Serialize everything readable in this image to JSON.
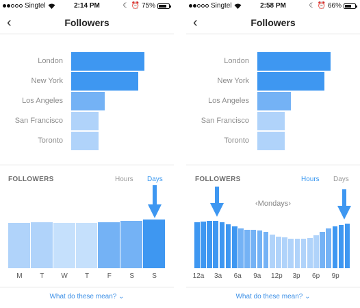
{
  "colors": {
    "accent": "#3897f0",
    "bar_dark": "#3e97f1",
    "bar_mid": "#74b2f5",
    "bar_light": "#b0d3fa",
    "bar_lighter": "#c5e0fc",
    "text_gray": "#999999"
  },
  "screens": [
    {
      "status": {
        "carrier": "Singtel",
        "time": "2:14 PM",
        "battery": "75%",
        "battery_level": 0.75
      },
      "nav": {
        "title": "Followers",
        "back_icon": "chevron-left-icon"
      },
      "top_locations": [
        {
          "name": "London",
          "value": 100
        },
        {
          "name": "New York",
          "value": 92
        },
        {
          "name": "Los Angeles",
          "value": 46
        },
        {
          "name": "San Francisco",
          "value": 37
        },
        {
          "name": "Toronto",
          "value": 37
        }
      ],
      "followers_section": {
        "heading": "FOLLOWERS",
        "tab_hours": "Hours",
        "tab_days": "Days",
        "active_tab": "Days",
        "chart_data": {
          "type": "bar",
          "categories": [
            "M",
            "T",
            "W",
            "T",
            "F",
            "S",
            "S"
          ],
          "values": [
            93,
            95,
            93,
            93,
            95,
            97,
            100
          ]
        },
        "annotation": "arrow-down-icon"
      },
      "footer_link": "What do these mean?"
    },
    {
      "status": {
        "carrier": "Singtel",
        "time": "2:58 PM",
        "battery": "66%",
        "battery_level": 0.66
      },
      "nav": {
        "title": "Followers",
        "back_icon": "chevron-left-icon"
      },
      "top_locations": [
        {
          "name": "London",
          "value": 100
        },
        {
          "name": "New York",
          "value": 92
        },
        {
          "name": "Los Angeles",
          "value": 46
        },
        {
          "name": "San Francisco",
          "value": 37
        },
        {
          "name": "Toronto",
          "value": 37
        }
      ],
      "followers_section": {
        "heading": "FOLLOWERS",
        "tab_hours": "Hours",
        "tab_days": "Days",
        "active_tab": "Hours",
        "day_selector": "Mondays",
        "chart_data": {
          "type": "bar",
          "tick_labels": [
            "12a",
            "3a",
            "6a",
            "9a",
            "12p",
            "3p",
            "6p",
            "9p"
          ],
          "values": [
            95,
            96,
            97,
            97,
            95,
            90,
            86,
            82,
            79,
            79,
            77,
            74,
            69,
            65,
            63,
            61,
            60,
            60,
            62,
            67,
            75,
            82,
            86,
            89,
            92
          ]
        },
        "annotation": "arrow-down-icon"
      },
      "footer_link": "What do these mean?"
    }
  ]
}
